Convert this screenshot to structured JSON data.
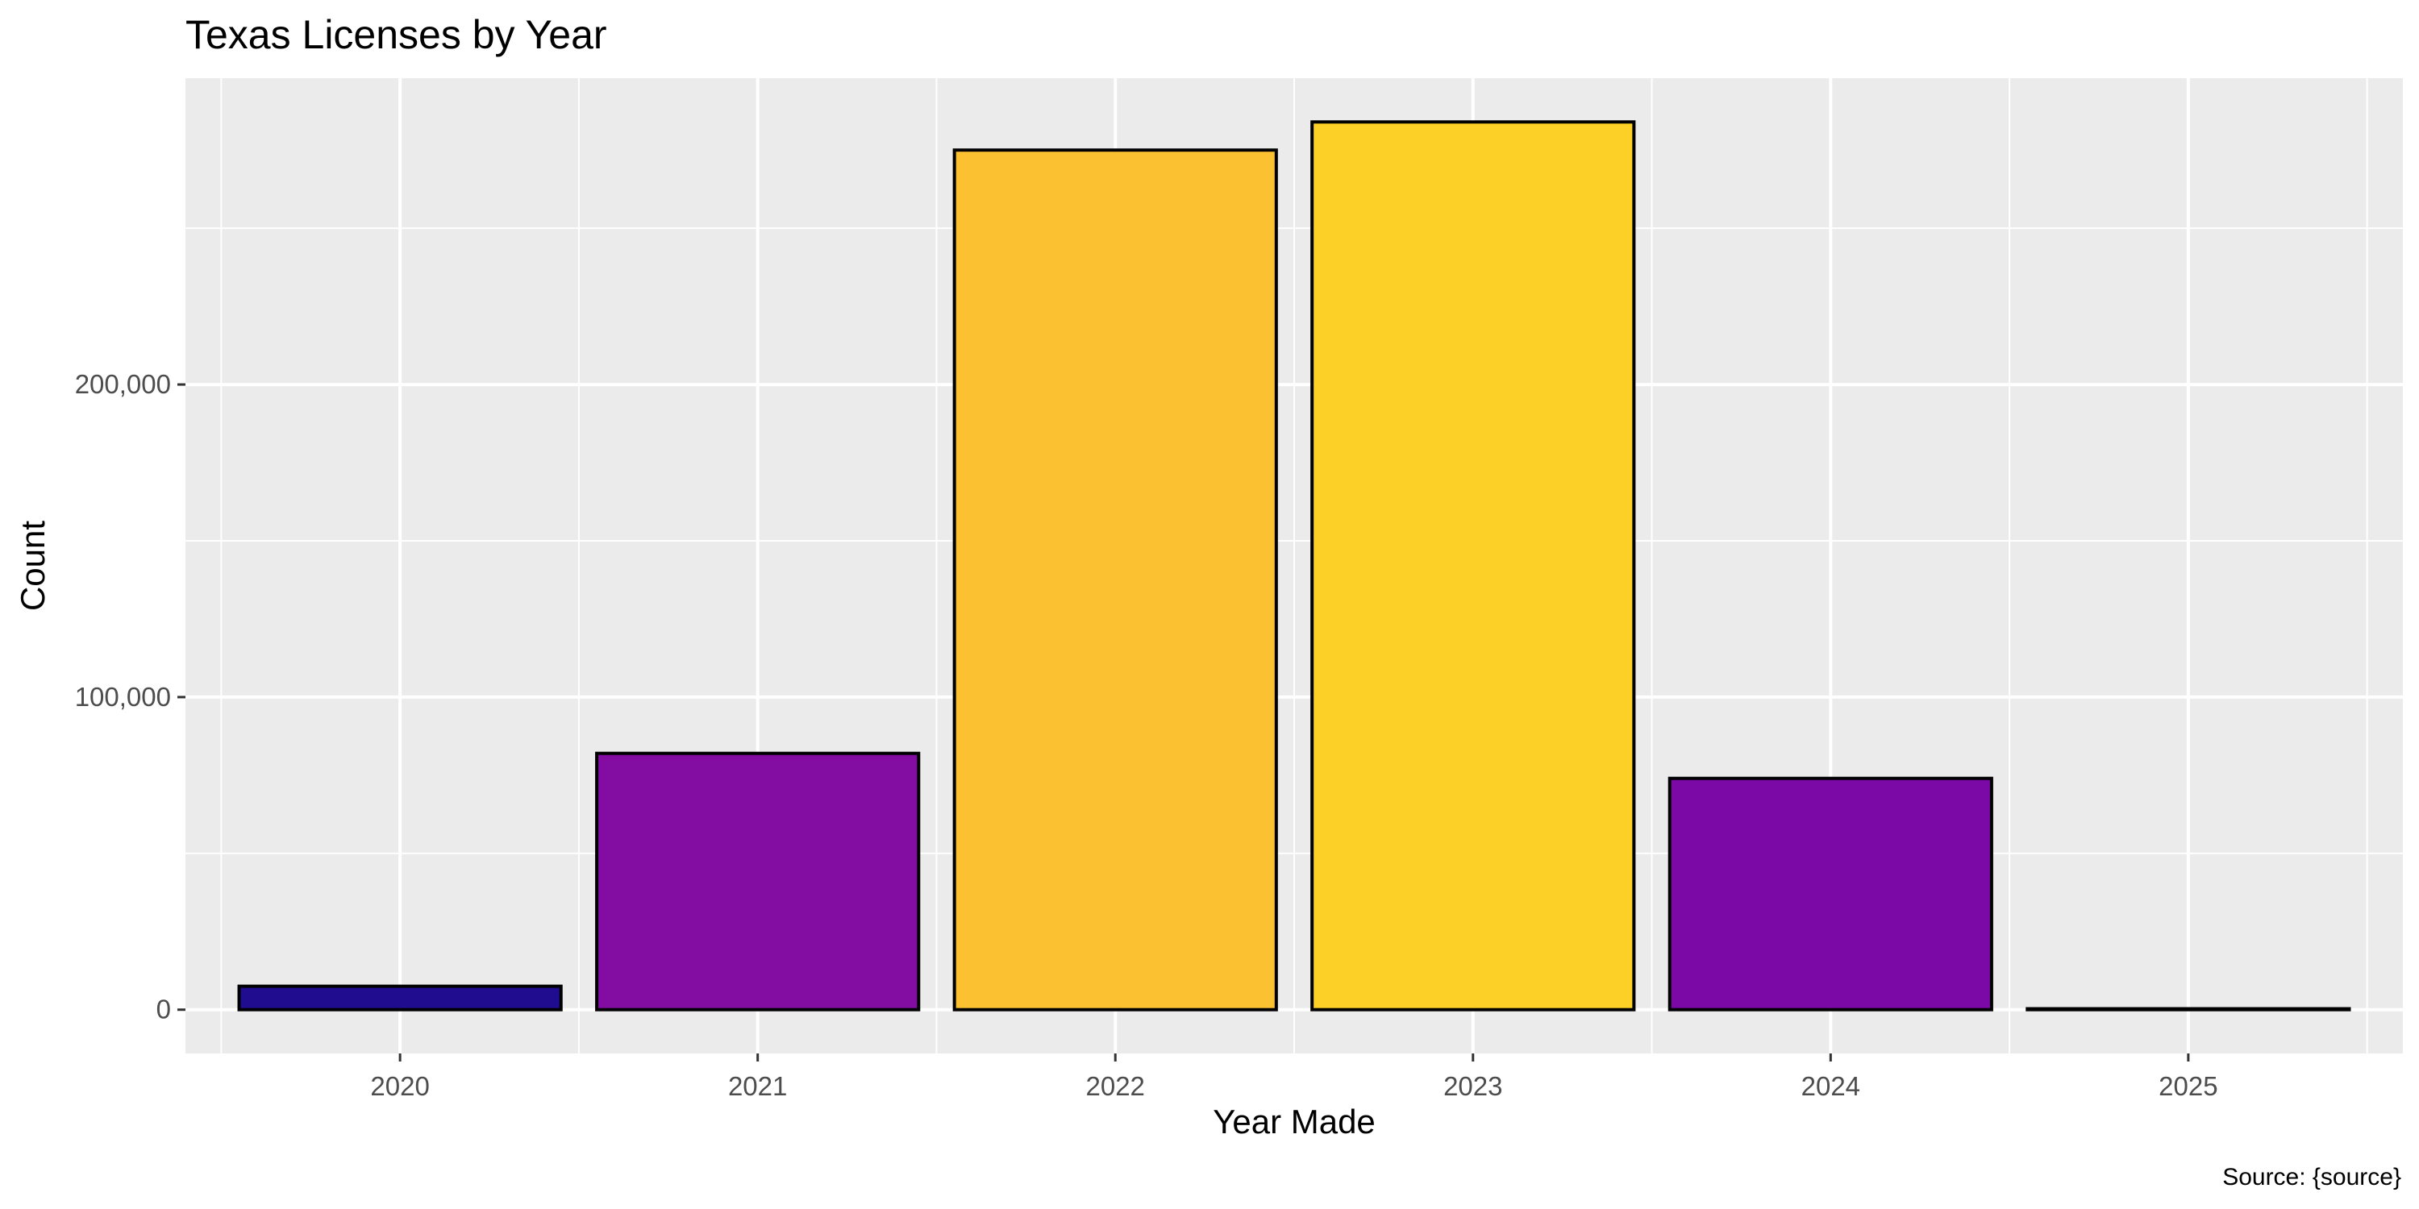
{
  "chart_data": {
    "type": "bar",
    "title": "Texas Licenses by Year",
    "xlabel": "Year Made",
    "ylabel": "Count",
    "caption": "Source: {source}",
    "categories": [
      "2020",
      "2021",
      "2022",
      "2023",
      "2024",
      "2025"
    ],
    "values": [
      7500,
      82000,
      275000,
      284000,
      74000,
      300
    ],
    "ylim": [
      -14000,
      298000
    ],
    "yticks": [
      0,
      100000,
      200000
    ],
    "ytick_labels": [
      "0",
      "100,000",
      "200,000"
    ],
    "bar_colors": [
      "#1f0c8f",
      "#830da2",
      "#fbc131",
      "#fcd026",
      "#7a09a5",
      "#0d0887"
    ],
    "bar_outline": "#000000",
    "panel_background": "#ebebeb",
    "grid": true,
    "grid_color": "#ffffff",
    "legend": "none"
  }
}
